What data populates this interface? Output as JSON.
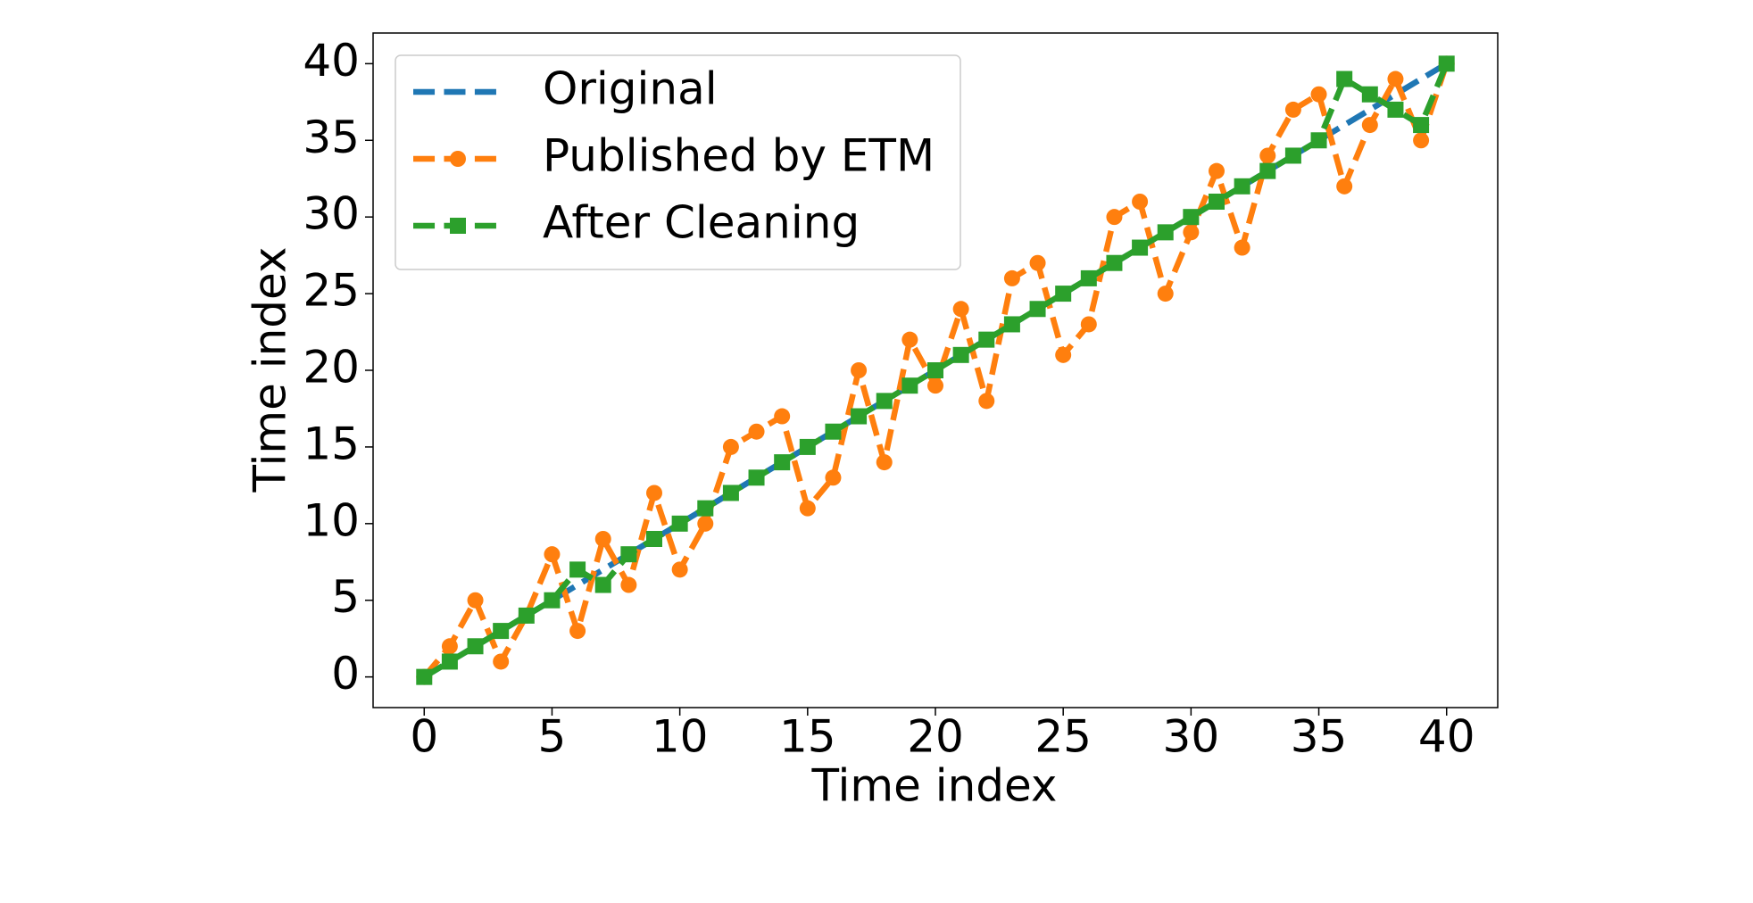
{
  "chart_data": {
    "type": "line",
    "xlabel": "Time index",
    "ylabel": "Time index",
    "x": [
      0,
      1,
      2,
      3,
      4,
      5,
      6,
      7,
      8,
      9,
      10,
      11,
      12,
      13,
      14,
      15,
      16,
      17,
      18,
      19,
      20,
      21,
      22,
      23,
      24,
      25,
      26,
      27,
      28,
      29,
      30,
      31,
      32,
      33,
      34,
      35,
      36,
      37,
      38,
      39,
      40
    ],
    "series": [
      {
        "name": "Original",
        "color": "#1f77b4",
        "linestyle": "dashed",
        "marker": "none",
        "values": [
          0,
          1,
          2,
          3,
          4,
          5,
          6,
          7,
          8,
          9,
          10,
          11,
          12,
          13,
          14,
          15,
          16,
          17,
          18,
          19,
          20,
          21,
          22,
          23,
          24,
          25,
          26,
          27,
          28,
          29,
          30,
          31,
          32,
          33,
          34,
          35,
          36,
          37,
          38,
          39,
          40
        ]
      },
      {
        "name": "Published by ETM",
        "color": "#ff7f0e",
        "linestyle": "dashed",
        "marker": "circle",
        "values": [
          0,
          2,
          5,
          1,
          4,
          8,
          3,
          9,
          6,
          12,
          7,
          10,
          15,
          16,
          17,
          11,
          13,
          20,
          14,
          22,
          19,
          24,
          18,
          26,
          27,
          21,
          23,
          30,
          31,
          25,
          29,
          33,
          28,
          34,
          37,
          38,
          32,
          36,
          39,
          35,
          40
        ]
      },
      {
        "name": "After Cleaning",
        "color": "#2ca02c",
        "linestyle": "dashed",
        "marker": "square",
        "values": [
          0,
          1,
          2,
          3,
          4,
          5,
          7,
          6,
          8,
          9,
          10,
          11,
          12,
          13,
          14,
          15,
          16,
          17,
          18,
          19,
          20,
          21,
          22,
          23,
          24,
          25,
          26,
          27,
          28,
          29,
          30,
          31,
          32,
          33,
          34,
          35,
          39,
          38,
          37,
          36,
          40
        ]
      }
    ],
    "xlim": [
      -2,
      42
    ],
    "ylim": [
      -2,
      42
    ],
    "xticks": [
      0,
      5,
      10,
      15,
      20,
      25,
      30,
      35,
      40
    ],
    "yticks": [
      0,
      5,
      10,
      15,
      20,
      25,
      30,
      35,
      40
    ],
    "grid": false,
    "legend": "upper left"
  }
}
